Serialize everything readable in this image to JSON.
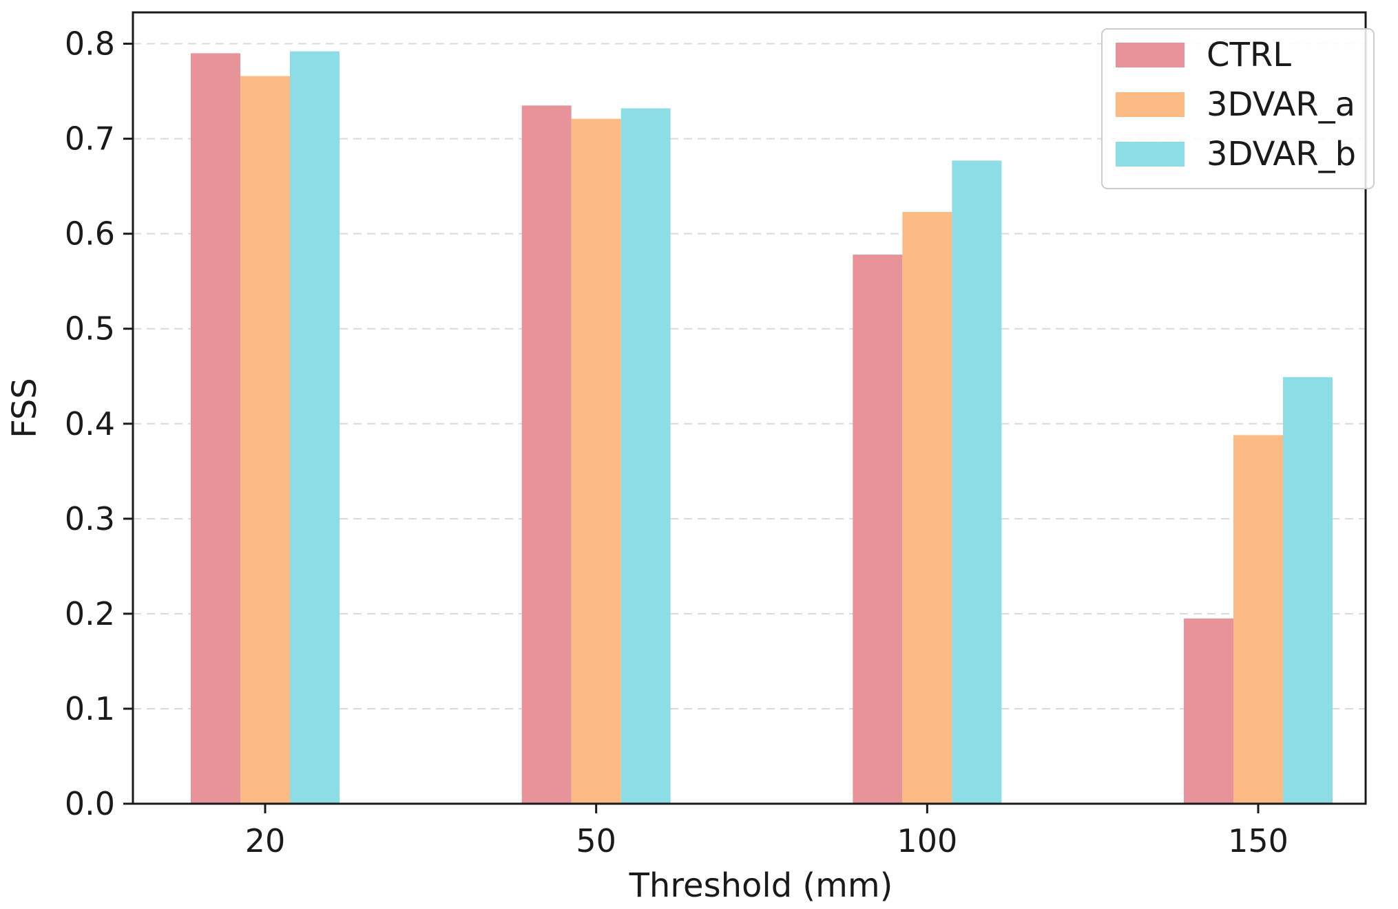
{
  "chart_data": {
    "type": "bar",
    "title": "",
    "xlabel": "Threshold (mm)",
    "ylabel": "FSS",
    "categories": [
      "20",
      "50",
      "100",
      "150"
    ],
    "series": [
      {
        "name": "CTRL",
        "color": "#e8939a",
        "values": [
          0.79,
          0.735,
          0.578,
          0.195
        ]
      },
      {
        "name": "3DVAR_a",
        "color": "#fcbb84",
        "values": [
          0.766,
          0.721,
          0.623,
          0.388
        ]
      },
      {
        "name": "3DVAR_b",
        "color": "#8cdde6",
        "values": [
          0.792,
          0.732,
          0.677,
          0.449
        ]
      }
    ],
    "ylim": [
      0,
      0.833
    ],
    "yticks": [
      "0.0",
      "0.1",
      "0.2",
      "0.3",
      "0.4",
      "0.5",
      "0.6",
      "0.7",
      "0.8"
    ],
    "grid": "horizontal dashed",
    "legend_position": "top-right"
  }
}
